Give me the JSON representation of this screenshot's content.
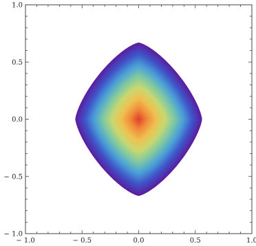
{
  "chart_data": {
    "type": "heatmap",
    "title": "",
    "xlabel": "",
    "ylabel": "",
    "xlim": [
      -1.0,
      1.0
    ],
    "ylim": [
      -1.0,
      1.0
    ],
    "grid": false,
    "legend": "none",
    "x_ticks": [
      {
        "value": -1.0,
        "label": "− 1.0"
      },
      {
        "value": -0.5,
        "label": "− 0.5"
      },
      {
        "value": 0.0,
        "label": "0.0"
      },
      {
        "value": 0.5,
        "label": "0.5"
      },
      {
        "value": 1.0,
        "label": "1.0"
      }
    ],
    "y_ticks": [
      {
        "value": 1.0,
        "label": "1.0"
      },
      {
        "value": 0.5,
        "label": "0.5"
      },
      {
        "value": 0.0,
        "label": "0.0"
      },
      {
        "value": -0.5,
        "label": "− 0.5"
      },
      {
        "value": -1.0,
        "label": "− 1.0"
      }
    ],
    "region": {
      "shape": "rounded-diamond",
      "x_extent": [
        -0.56,
        0.56
      ],
      "y_extent": [
        -0.67,
        0.67
      ],
      "value_at_center": 1.0,
      "value_at_edge": 0.0
    },
    "colormap": [
      "#5a1fa0",
      "#3f54c8",
      "#4a9fd8",
      "#7ec8a4",
      "#c8d870",
      "#f0c050",
      "#f08a3a",
      "#e03a2a"
    ]
  }
}
